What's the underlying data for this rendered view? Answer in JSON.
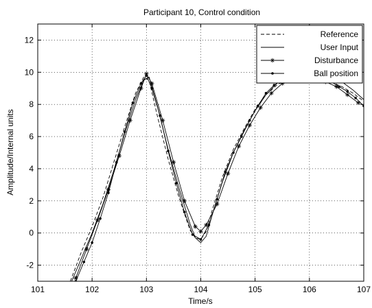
{
  "chart_data": {
    "type": "line",
    "title": "Participant 10, Control condition",
    "xlabel": "Time/s",
    "ylabel": "Amplitude/Internal units",
    "xlim": [
      101,
      107
    ],
    "ylim": [
      -3,
      13
    ],
    "xticks": [
      101,
      102,
      103,
      104,
      105,
      106,
      107
    ],
    "yticks": [
      -2,
      0,
      2,
      4,
      6,
      8,
      10,
      12
    ],
    "grid": true,
    "legend_position": "top-right",
    "series": [
      {
        "name": "Reference",
        "style": "dashed",
        "marker": "none",
        "color": "#000000",
        "x": [
          101.6,
          101.8,
          102.0,
          102.2,
          102.4,
          102.6,
          102.8,
          102.95,
          103.05,
          103.2,
          103.4,
          103.6,
          103.8,
          103.9,
          104.0,
          104.1,
          104.2,
          104.4,
          104.6,
          104.8,
          105.0,
          105.2,
          105.4,
          105.6,
          105.8,
          106.0,
          106.2,
          106.4,
          106.6,
          106.8,
          107.0
        ],
        "y": [
          -3.0,
          -1.2,
          0.4,
          2.2,
          4.4,
          6.6,
          8.7,
          9.7,
          9.5,
          7.3,
          4.6,
          2.2,
          0.2,
          -0.3,
          -0.4,
          0.1,
          1.3,
          3.5,
          5.2,
          6.5,
          7.7,
          8.6,
          9.2,
          9.6,
          9.8,
          9.8,
          9.7,
          9.4,
          9.1,
          8.7,
          8.2
        ]
      },
      {
        "name": "User Input",
        "style": "solid",
        "marker": "none",
        "color": "#000000",
        "x": [
          101.6,
          101.8,
          102.0,
          102.2,
          102.4,
          102.6,
          102.8,
          102.95,
          103.05,
          103.2,
          103.4,
          103.6,
          103.8,
          103.9,
          104.0,
          104.1,
          104.2,
          104.4,
          104.6,
          104.8,
          105.0,
          105.2,
          105.4,
          105.6,
          105.8,
          106.0,
          106.2,
          106.4,
          106.6,
          106.8,
          107.0
        ],
        "y": [
          -3.2,
          -1.6,
          0.0,
          1.8,
          3.9,
          6.2,
          8.3,
          9.5,
          9.7,
          7.9,
          5.2,
          2.8,
          0.6,
          -0.3,
          -0.6,
          -0.2,
          1.0,
          3.2,
          5.0,
          6.4,
          7.6,
          8.6,
          9.3,
          9.7,
          9.9,
          10.0,
          9.9,
          9.7,
          9.4,
          8.9,
          8.3
        ]
      },
      {
        "name": "Disturbance",
        "style": "solid",
        "marker": "asterisk",
        "color": "#000000",
        "x": [
          101.7,
          101.9,
          102.1,
          102.3,
          102.5,
          102.7,
          102.9,
          103.0,
          103.1,
          103.3,
          103.5,
          103.7,
          103.9,
          104.0,
          104.1,
          104.3,
          104.5,
          104.7,
          104.9,
          105.1,
          105.3,
          105.5,
          105.7,
          105.9,
          106.1,
          106.3,
          106.5,
          106.7,
          106.9
        ],
        "y": [
          -2.8,
          -1.0,
          0.8,
          2.7,
          4.8,
          7.0,
          9.0,
          9.9,
          9.3,
          7.0,
          4.4,
          2.0,
          0.4,
          0.1,
          0.5,
          1.8,
          3.7,
          5.4,
          6.7,
          7.8,
          8.7,
          9.3,
          9.6,
          9.7,
          9.6,
          9.4,
          9.1,
          8.6,
          8.1
        ]
      },
      {
        "name": "Ball position",
        "style": "solid",
        "marker": "dot",
        "color": "#000000",
        "x": [
          101.7,
          101.85,
          102.0,
          102.15,
          102.3,
          102.45,
          102.6,
          102.75,
          102.9,
          103.0,
          103.1,
          103.25,
          103.4,
          103.55,
          103.7,
          103.85,
          104.0,
          104.15,
          104.3,
          104.45,
          104.6,
          104.75,
          104.9,
          105.05,
          105.2,
          105.35,
          105.5,
          105.65,
          105.8,
          105.95,
          106.1,
          106.25,
          106.4,
          106.55,
          106.7,
          106.85,
          107.0
        ],
        "y": [
          -3.0,
          -1.8,
          -0.6,
          0.9,
          2.5,
          4.4,
          6.3,
          8.1,
          9.3,
          9.8,
          9.0,
          7.3,
          5.1,
          3.1,
          1.3,
          -0.1,
          -0.4,
          0.5,
          2.1,
          3.8,
          5.0,
          6.0,
          7.0,
          7.9,
          8.7,
          9.2,
          9.5,
          9.7,
          9.8,
          9.8,
          9.7,
          9.6,
          9.4,
          9.1,
          8.8,
          8.4,
          7.9
        ]
      }
    ]
  }
}
